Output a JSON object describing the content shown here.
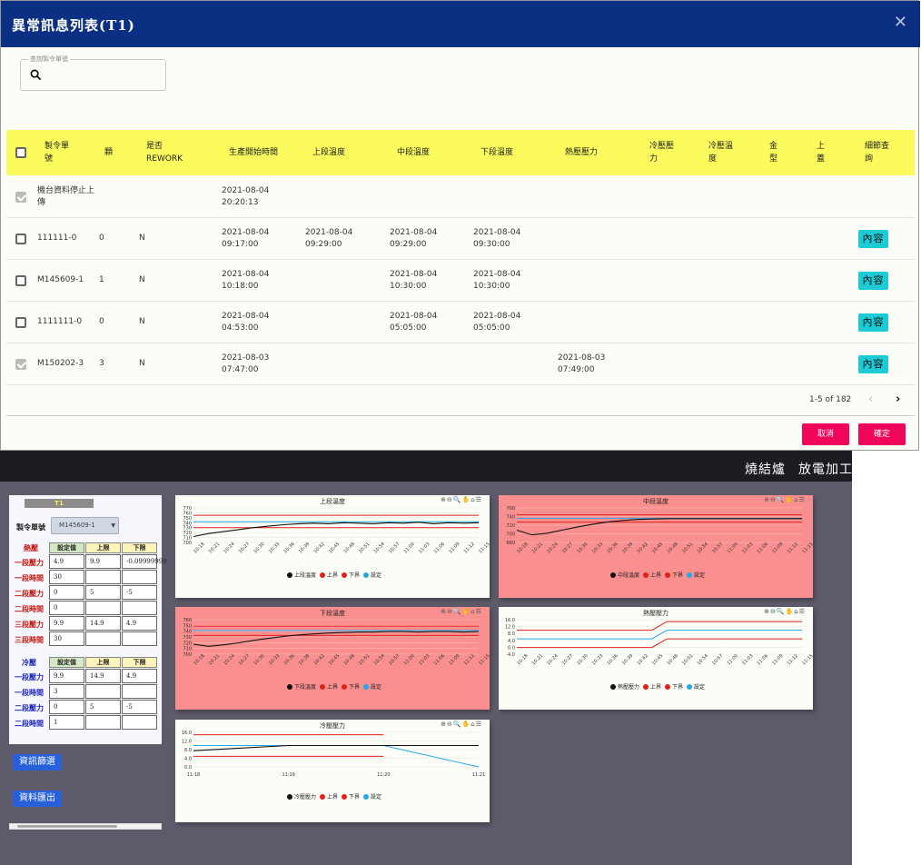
{
  "dialog": {
    "title": "異常訊息列表(T1)",
    "close_glyph": "✕",
    "search_label": "查詢製令單號",
    "columns": [
      "製令單號",
      "顆",
      "是否REWORK",
      "生產開始時間",
      "上段溫度",
      "中段溫度",
      "下段溫度",
      "熱壓壓力",
      "冷壓壓力",
      "冷壓溫度",
      "金型",
      "上蓋",
      "細節查詢"
    ],
    "column_lines": [
      [
        "製令單",
        "號"
      ],
      [
        "顆"
      ],
      [
        "是否",
        "REWORK"
      ],
      [
        "生產開始時間"
      ],
      [
        "上段溫度"
      ],
      [
        "中段溫度"
      ],
      [
        "下段溫度"
      ],
      [
        "熱壓壓力"
      ],
      [
        "冷壓壓",
        "力"
      ],
      [
        "冷壓溫",
        "度"
      ],
      [
        "金",
        "型"
      ],
      [
        "上",
        "蓋"
      ],
      [
        "細節查",
        "詢"
      ]
    ],
    "rows": [
      {
        "checked": true,
        "order": "機台資料停止上傳",
        "order_lines": [
          "機台資料停止上",
          "傳"
        ],
        "count": "",
        "rework": "",
        "start": "2021-08-04 20:20:13",
        "upper": "",
        "middle": "",
        "lower": "",
        "hot_press": "",
        "has_detail": false
      },
      {
        "checked": false,
        "order": "111111-0",
        "order_lines": [
          "111111-0"
        ],
        "count": "0",
        "rework": "N",
        "start": "2021-08-04 09:17:00",
        "upper": "2021-08-04 09:29:00",
        "middle": "2021-08-04 09:29:00",
        "lower": "2021-08-04 09:30:00",
        "hot_press": "",
        "has_detail": true
      },
      {
        "checked": false,
        "order": "M145609-1",
        "order_lines": [
          "M145609-1"
        ],
        "count": "1",
        "rework": "N",
        "start": "2021-08-04 10:18:00",
        "upper": "",
        "middle": "2021-08-04 10:30:00",
        "lower": "2021-08-04 10:30:00",
        "hot_press": "",
        "has_detail": true
      },
      {
        "checked": false,
        "order": "1111111-0",
        "order_lines": [
          "1111111-0"
        ],
        "count": "0",
        "rework": "N",
        "start": "2021-08-04 04:53:00",
        "upper": "",
        "middle": "2021-08-04 05:05:00",
        "lower": "2021-08-04 05:05:00",
        "hot_press": "",
        "has_detail": true
      },
      {
        "checked": true,
        "order": "M150202-3",
        "order_lines": [
          "M150202-3"
        ],
        "count": "3",
        "rework": "N",
        "start": "2021-08-03 07:47:00",
        "upper": "",
        "middle": "",
        "lower": "",
        "hot_press": "2021-08-03 07:49:00",
        "has_detail": true
      }
    ],
    "detail_button": "內容",
    "pagination": "1-5 of 182",
    "prev_glyph": "‹",
    "next_glyph": "›",
    "cancel": "取消",
    "confirm": "確定"
  },
  "nav": {
    "items": [
      "燒結爐",
      "放電加工"
    ]
  },
  "panel": {
    "title": "T1",
    "order_label": "製令單號",
    "order_value": "M145609-1",
    "hot_label": "熱壓",
    "cold_label": "冷壓",
    "headers": [
      "設定值",
      "上限",
      "下限"
    ],
    "hot_rows": [
      {
        "label": "一段壓力",
        "set": "4.9",
        "upper": "9.9",
        "lower": "-0.09999999"
      },
      {
        "label": "一段時間",
        "set": "30",
        "upper": "",
        "lower": ""
      },
      {
        "label": "二段壓力",
        "set": "0",
        "upper": "5",
        "lower": "-5"
      },
      {
        "label": "二段時間",
        "set": "0",
        "upper": "",
        "lower": ""
      },
      {
        "label": "三段壓力",
        "set": "9.9",
        "upper": "14.9",
        "lower": "4.9"
      },
      {
        "label": "三段時間",
        "set": "30",
        "upper": "",
        "lower": ""
      }
    ],
    "cold_rows": [
      {
        "label": "一段壓力",
        "set": "9.9",
        "upper": "14.9",
        "lower": "4.9"
      },
      {
        "label": "一段時間",
        "set": "3",
        "upper": "",
        "lower": ""
      },
      {
        "label": "二段壓力",
        "set": "0",
        "upper": "5",
        "lower": "-5"
      },
      {
        "label": "二段時間",
        "set": "1",
        "upper": "",
        "lower": ""
      }
    ],
    "filter_button": "資訊篩選",
    "export_button": "資料匯出"
  },
  "colors": {
    "accent_blue": "#0b2f82",
    "table_header": "#fbfb5d",
    "detail": "#1dcbd4",
    "pink_button": "#f0055a",
    "alarm_chart": "#fa8f8f",
    "actual": "#111111",
    "upper": "#e0211b",
    "lower": "#e0211b",
    "setpoint": "#27a8e8"
  },
  "chart_data": [
    {
      "type": "line",
      "title": "上段溫度",
      "alarm": false,
      "x": [
        "10:18",
        "10:21",
        "10:24",
        "10:27",
        "10:30",
        "10:33",
        "10:36",
        "10:39",
        "10:42",
        "10:45",
        "10:48",
        "10:51",
        "10:54",
        "10:57",
        "11:00",
        "11:03",
        "11:06",
        "11:09",
        "11:12",
        "11:15"
      ],
      "yticks": [
        "770",
        "760",
        "750",
        "740",
        "730",
        "720",
        "710",
        "700"
      ],
      "ylim": [
        700,
        770
      ],
      "series": [
        {
          "name": "上段溫度",
          "values": [
            712,
            718,
            722,
            726,
            730,
            733,
            736,
            738,
            739,
            738,
            740,
            739,
            738,
            740,
            739,
            741,
            738,
            740,
            739,
            740
          ]
        },
        {
          "name": "上界",
          "values": [
            755,
            755,
            755,
            755,
            755,
            755,
            755,
            755,
            755,
            755,
            755,
            755,
            755,
            755,
            755,
            755,
            755,
            755,
            755,
            755
          ]
        },
        {
          "name": "下界",
          "values": [
            730,
            730,
            730,
            730,
            730,
            730,
            730,
            730,
            730,
            730,
            730,
            730,
            730,
            730,
            730,
            730,
            730,
            730,
            730,
            730
          ]
        },
        {
          "name": "設定",
          "values": [
            742,
            742,
            742,
            742,
            742,
            742,
            742,
            742,
            742,
            742,
            742,
            742,
            742,
            742,
            742,
            742,
            742,
            742,
            742,
            742
          ]
        }
      ]
    },
    {
      "type": "line",
      "title": "中段溫度",
      "alarm": true,
      "x": [
        "10:18",
        "10:21",
        "10:24",
        "10:27",
        "10:30",
        "10:33",
        "10:36",
        "10:39",
        "10:42",
        "10:45",
        "10:48",
        "10:51",
        "10:54",
        "10:57",
        "11:00",
        "11:03",
        "11:06",
        "11:09",
        "11:12",
        "11:15"
      ],
      "yticks": [
        "760",
        "740",
        "720",
        "700",
        "680"
      ],
      "ylim": [
        680,
        770
      ],
      "series": [
        {
          "name": "中段溫度",
          "values": [
            712,
            700,
            704,
            712,
            720,
            727,
            733,
            737,
            740,
            741,
            742,
            742,
            742,
            742,
            742,
            742,
            742,
            742,
            742,
            742
          ]
        },
        {
          "name": "上界",
          "values": [
            752,
            752,
            752,
            752,
            752,
            752,
            752,
            752,
            752,
            752,
            752,
            752,
            752,
            752,
            752,
            752,
            752,
            752,
            752,
            752
          ]
        },
        {
          "name": "下界",
          "values": [
            733,
            733,
            733,
            733,
            733,
            733,
            733,
            733,
            733,
            733,
            733,
            733,
            733,
            733,
            733,
            733,
            733,
            733,
            733,
            733
          ]
        },
        {
          "name": "設定",
          "values": [
            743,
            743,
            743,
            743,
            743,
            743,
            743,
            743,
            743,
            743,
            743,
            743,
            743,
            743,
            743,
            743,
            743,
            743,
            743,
            743
          ]
        }
      ]
    },
    {
      "type": "line",
      "title": "下段溫度",
      "alarm": true,
      "x": [
        "10:18",
        "10:21",
        "10:24",
        "10:27",
        "10:30",
        "10:33",
        "10:36",
        "10:39",
        "10:42",
        "10:45",
        "10:48",
        "10:51",
        "10:54",
        "10:57",
        "11:00",
        "11:03",
        "11:06",
        "11:09",
        "11:12",
        "11:15"
      ],
      "yticks": [
        "760",
        "750",
        "740",
        "730",
        "720",
        "710",
        "700"
      ],
      "ylim": [
        695,
        765
      ],
      "series": [
        {
          "name": "下段溫度",
          "values": [
            715,
            711,
            714,
            718,
            723,
            727,
            731,
            734,
            736,
            738,
            739,
            740,
            740,
            741,
            741,
            740,
            741,
            741,
            740,
            741
          ]
        },
        {
          "name": "上界",
          "values": [
            752,
            752,
            752,
            752,
            752,
            752,
            752,
            752,
            752,
            752,
            752,
            752,
            752,
            752,
            752,
            752,
            752,
            752,
            752,
            752
          ]
        },
        {
          "name": "下界",
          "values": [
            733,
            733,
            733,
            733,
            733,
            733,
            733,
            733,
            733,
            733,
            733,
            733,
            733,
            733,
            733,
            733,
            733,
            733,
            733,
            733
          ]
        },
        {
          "name": "設定",
          "values": [
            743,
            743,
            743,
            743,
            743,
            743,
            743,
            743,
            743,
            743,
            743,
            743,
            743,
            743,
            743,
            743,
            743,
            743,
            743,
            743
          ]
        }
      ]
    },
    {
      "type": "line",
      "title": "熱壓壓力",
      "alarm": false,
      "x": [
        "10:18",
        "10:21",
        "10:24",
        "10:27",
        "10:30",
        "10:33",
        "10:36",
        "10:39",
        "10:42",
        "10:45",
        "10:48",
        "10:51",
        "10:54",
        "10:57",
        "11:00",
        "11:03",
        "11:06",
        "11:09",
        "11:12",
        "11:15"
      ],
      "yticks": [
        "16.0",
        "12.0",
        "8.0",
        "4.0",
        "0.0",
        "-4.0"
      ],
      "ylim": [
        -4,
        16
      ],
      "series": [
        {
          "name": "熱壓壓力",
          "values": [
            null,
            null,
            null,
            null,
            null,
            null,
            null,
            null,
            null,
            null,
            null,
            null,
            null,
            null,
            null,
            null,
            null,
            null,
            null,
            null
          ]
        },
        {
          "name": "上界",
          "values": [
            9.9,
            9.9,
            9.9,
            9.9,
            9.9,
            9.9,
            9.9,
            9.9,
            9.9,
            9.9,
            14.9,
            14.9,
            14.9,
            14.9,
            14.9,
            14.9,
            14.9,
            14.9,
            14.9,
            14.9
          ]
        },
        {
          "name": "下界",
          "values": [
            -0.1,
            -0.1,
            -0.1,
            -0.1,
            -0.1,
            -0.1,
            -0.1,
            -0.1,
            -0.1,
            -0.1,
            4.9,
            4.9,
            4.9,
            4.9,
            4.9,
            4.9,
            4.9,
            4.9,
            4.9,
            4.9
          ]
        },
        {
          "name": "設定",
          "values": [
            4.9,
            4.9,
            4.9,
            4.9,
            4.9,
            4.9,
            4.9,
            4.9,
            4.9,
            4.9,
            9.9,
            9.9,
            9.9,
            9.9,
            9.9,
            9.9,
            9.9,
            9.9,
            9.9,
            9.9
          ]
        }
      ]
    },
    {
      "type": "line",
      "title": "冷壓壓力",
      "alarm": false,
      "x": [
        "11:18",
        "11:19",
        "11:20",
        "11:21"
      ],
      "yticks": [
        "16.0",
        "12.0",
        "8.0",
        "4.0",
        "0.0"
      ],
      "ylim": [
        0,
        16
      ],
      "series": [
        {
          "name": "冷壓壓力",
          "values": [
            7.5,
            9.9,
            9.9,
            9.9
          ]
        },
        {
          "name": "上界",
          "values": [
            14.9,
            14.9,
            14.9,
            null
          ]
        },
        {
          "name": "下界",
          "values": [
            4.9,
            4.9,
            4.9,
            null
          ]
        },
        {
          "name": "設定",
          "values": [
            9.9,
            9.9,
            9.9,
            0
          ]
        }
      ]
    }
  ]
}
